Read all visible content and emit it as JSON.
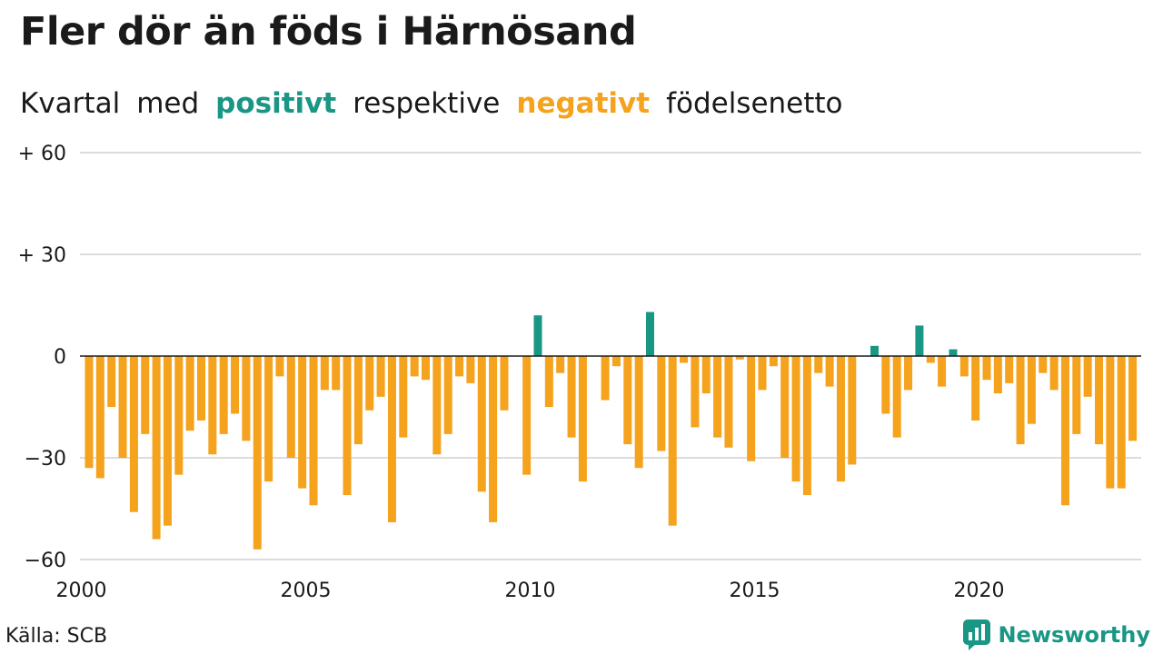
{
  "title": "Fler dör än föds i Härnösand",
  "subtitle": {
    "part1": "Kvartal",
    "part2": "med",
    "positive_word": "positivt",
    "part3": "respektive",
    "negative_word": "negativt",
    "part4": "födelsenetto"
  },
  "source": "Källa: SCB",
  "brand": "Newsworthy",
  "colors": {
    "positive": "#1a9685",
    "negative": "#f5a21d",
    "grid": "#dcdcdc",
    "axis": "#1a1a1a",
    "brand": "#1a9685"
  },
  "chart_data": {
    "type": "bar",
    "title": "Fler dör än föds i Härnösand",
    "xlabel": "",
    "ylabel": "",
    "ylim": [
      -60,
      60
    ],
    "y_ticks": [
      {
        "value": 60,
        "label": "+ 60"
      },
      {
        "value": 30,
        "label": "+ 30"
      },
      {
        "value": 0,
        "label": "0"
      },
      {
        "value": -30,
        "label": "−30"
      },
      {
        "value": -60,
        "label": "−60"
      }
    ],
    "x_ticks": [
      {
        "value": 2000,
        "label": "2000"
      },
      {
        "value": 2005,
        "label": "2005"
      },
      {
        "value": 2010,
        "label": "2010"
      },
      {
        "value": 2015,
        "label": "2015"
      },
      {
        "value": 2020,
        "label": "2020"
      }
    ],
    "grid": true,
    "start_year": 2000,
    "periods_per_year": 4,
    "values": [
      -33,
      -36,
      -15,
      -30,
      -46,
      -23,
      -54,
      -50,
      -35,
      -22,
      -19,
      -29,
      -23,
      -17,
      -25,
      -57,
      -37,
      -6,
      -30,
      -39,
      -44,
      -10,
      -10,
      -41,
      -26,
      -16,
      -12,
      -49,
      -24,
      -6,
      -7,
      -29,
      -23,
      -6,
      -8,
      -40,
      -49,
      -16,
      0,
      -35,
      12,
      -15,
      -5,
      -24,
      -37,
      0,
      -13,
      -3,
      -26,
      -33,
      13,
      -28,
      -50,
      -2,
      -21,
      -11,
      -24,
      -27,
      -1,
      -31,
      -10,
      -3,
      -30,
      -37,
      -41,
      -5,
      -9,
      -37,
      -32,
      0,
      3,
      -17,
      -24,
      -10,
      9,
      -2,
      -9,
      2,
      -6,
      -19,
      -7,
      -11,
      -8,
      -26,
      -20,
      -5,
      -10,
      -44,
      -23,
      -12,
      -26,
      -39,
      -39,
      -25
    ]
  }
}
